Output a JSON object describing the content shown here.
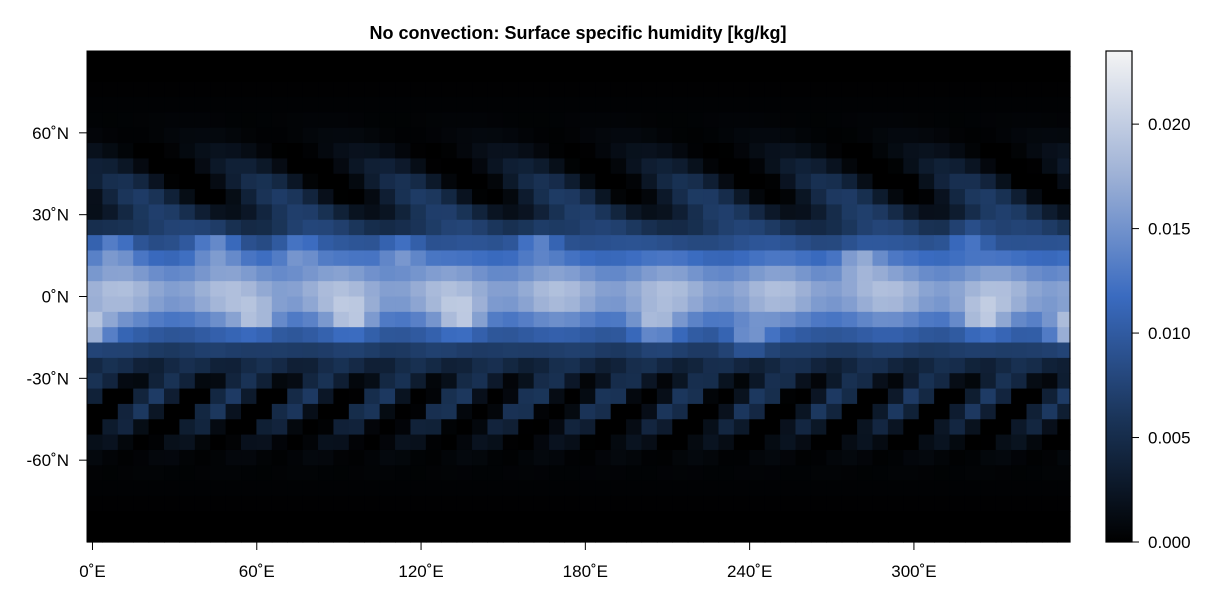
{
  "chart_data": {
    "type": "heatmap",
    "title": "No convection: Surface specific humidity [kg/kg]",
    "xlabel": "",
    "ylabel": "",
    "x_ticks": [
      {
        "value": 0,
        "label": "0˚E"
      },
      {
        "value": 60,
        "label": "60˚E"
      },
      {
        "value": 120,
        "label": "120˚E"
      },
      {
        "value": 180,
        "label": "180˚E"
      },
      {
        "value": 240,
        "label": "240˚E"
      },
      {
        "value": 300,
        "label": "300˚E"
      }
    ],
    "y_ticks": [
      {
        "value": 60,
        "label": "60˚N"
      },
      {
        "value": 30,
        "label": "30˚N"
      },
      {
        "value": 0,
        "label": "0˚N"
      },
      {
        "value": -30,
        "label": "-30˚N"
      },
      {
        "value": -60,
        "label": "-60˚N"
      }
    ],
    "xlim": [
      -2,
      357
    ],
    "ylim": [
      -90,
      90
    ],
    "colorbar": {
      "range": [
        0.0,
        0.0235
      ],
      "colormap": [
        "#000000",
        "#1a3458",
        "#3a6bc0",
        "#9fb2d6",
        "#f4f4f4"
      ],
      "ticks": [
        {
          "value": 0.0,
          "label": "0.000"
        },
        {
          "value": 0.005,
          "label": "0.005"
        },
        {
          "value": 0.01,
          "label": "0.010"
        },
        {
          "value": 0.015,
          "label": "0.015"
        },
        {
          "value": 0.02,
          "label": "0.020"
        }
      ]
    },
    "field_description": "Surface specific humidity on a global lon-lat grid: maximum (~0.016-0.023 kg/kg) in the tropical band between about 25S and 30N with bright spots near the equator; dry (near 0) in polar regions; wavy mid-latitude structure.",
    "hotspots": [
      {
        "lon": 0,
        "lat": -12,
        "value": 0.023
      },
      {
        "lon": 8,
        "lat": 18,
        "value": 0.019
      },
      {
        "lon": 45,
        "lat": 18,
        "value": 0.019
      },
      {
        "lon": 60,
        "lat": -8,
        "value": 0.02
      },
      {
        "lon": 75,
        "lat": 17,
        "value": 0.02
      },
      {
        "lon": 95,
        "lat": -8,
        "value": 0.021
      },
      {
        "lon": 113,
        "lat": 17,
        "value": 0.02
      },
      {
        "lon": 135,
        "lat": -8,
        "value": 0.019
      },
      {
        "lon": 163,
        "lat": 20,
        "value": 0.018
      },
      {
        "lon": 205,
        "lat": -11,
        "value": 0.023
      },
      {
        "lon": 240,
        "lat": -15,
        "value": 0.022
      },
      {
        "lon": 280,
        "lat": 13,
        "value": 0.02
      },
      {
        "lon": 320,
        "lat": 22,
        "value": 0.02
      },
      {
        "lon": 325,
        "lat": -8,
        "value": 0.019
      },
      {
        "lon": 355,
        "lat": -12,
        "value": 0.023
      }
    ]
  }
}
